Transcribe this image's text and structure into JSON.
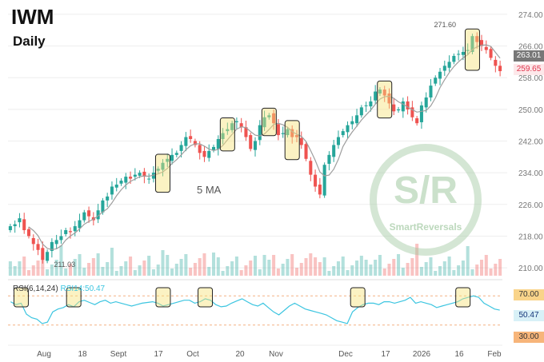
{
  "header": {
    "ticker": "IWM",
    "timeframe": "Daily"
  },
  "ma_label": "5 MA",
  "rsi": {
    "label": "RSI(6,14,24)",
    "value_label": "RSI14:50.47"
  },
  "watermark": {
    "logo_text": "S/R",
    "name": "SmartReversals"
  },
  "price_tags": {
    "last": "263.01",
    "current": "259.65",
    "rsi_current": "50.47",
    "rsi_upper": "70.00",
    "rsi_lower": "30.00",
    "high_label": "271.60",
    "low_label": "211.03"
  },
  "colors": {
    "up": "#26a69a",
    "down": "#ef5350",
    "ma": "#9e9e9e",
    "rsi": "#3cc5e0",
    "highlight": "#f6e27a"
  },
  "chart_data": {
    "type": "candlestick",
    "title": "IWM",
    "subtitle": "Daily",
    "y_axis": {
      "ticks": [
        210,
        218,
        226,
        234,
        242,
        250,
        258,
        266,
        274
      ],
      "range": [
        208,
        276
      ]
    },
    "x_axis": {
      "ticks": [
        "Aug",
        "18",
        "Sept",
        "17",
        "Oct",
        "20",
        "Nov",
        "Dec",
        "17",
        "2026",
        "16",
        "Feb"
      ]
    },
    "close": [
      220.5,
      221.0,
      222.5,
      219.5,
      218.0,
      216.0,
      214.5,
      212.0,
      214.0,
      216.5,
      217.0,
      218.0,
      219.5,
      219.0,
      220.5,
      222.0,
      224.0,
      223.0,
      222.0,
      224.5,
      227.0,
      228.0,
      230.5,
      231.0,
      232.0,
      233.0,
      232.5,
      233.5,
      234.0,
      233.0,
      232.5,
      234.0,
      235.0,
      236.5,
      237.5,
      238.5,
      239.0,
      241.0,
      243.0,
      242.5,
      241.0,
      239.0,
      238.0,
      239.5,
      240.5,
      242.5,
      244.0,
      245.0,
      246.5,
      247.0,
      245.5,
      243.0,
      240.0,
      242.0,
      246.0,
      248.0,
      248.5,
      246.5,
      243.5,
      244.0,
      245.0,
      243.0,
      243.0,
      241.0,
      237.5,
      233.5,
      230.5,
      228.5,
      236.0,
      238.5,
      241.0,
      243.0,
      244.5,
      246.0,
      247.0,
      248.5,
      250.5,
      251.0,
      252.0,
      254.5,
      255.0,
      253.5,
      251.5,
      249.5,
      250.0,
      252.0,
      250.0,
      248.0,
      246.5,
      251.0,
      253.0,
      256.0,
      258.0,
      259.5,
      261.0,
      262.0,
      263.5,
      264.0,
      264.5,
      265.0,
      268.5,
      267.0,
      266.0,
      265.0,
      263.0,
      261.0,
      259.65
    ],
    "rsi14": [
      62,
      58,
      60,
      45,
      40,
      38,
      32,
      34,
      48,
      52,
      54,
      58,
      55,
      62,
      64,
      61,
      58,
      62,
      64,
      60,
      62,
      60,
      58,
      56,
      58,
      60,
      61,
      62,
      60,
      56,
      58,
      60,
      62,
      64,
      64,
      60,
      62,
      66,
      64,
      58,
      55,
      56,
      60,
      63,
      66,
      62,
      58,
      56,
      60,
      54,
      48,
      44,
      50,
      56,
      60,
      56,
      52,
      50,
      48,
      46,
      44,
      40,
      36,
      34,
      32,
      48,
      54,
      58,
      60,
      60,
      58,
      62,
      62,
      60,
      62,
      64,
      68,
      60,
      62,
      60,
      58,
      54,
      56,
      58,
      60,
      62,
      66,
      68,
      70,
      68,
      60,
      56,
      52,
      50.47
    ],
    "ma_period": 5,
    "highlight_boxes_count": 13
  }
}
